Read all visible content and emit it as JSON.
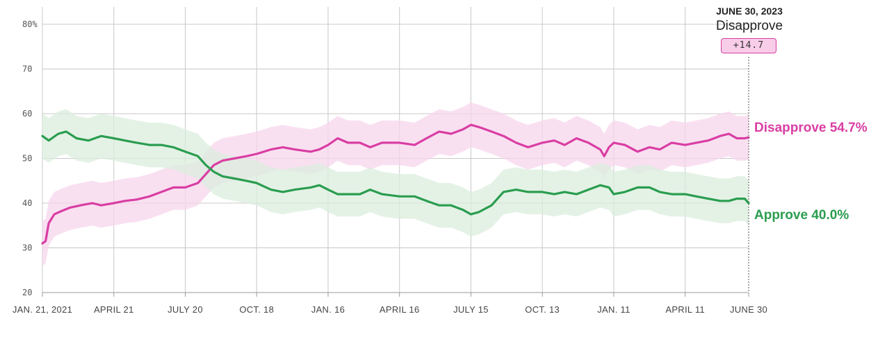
{
  "hover": {
    "date": "JUNE 30, 2023",
    "leader": "Disapprove",
    "margin": "+14.7"
  },
  "end_labels": {
    "disapprove": "Disapprove 54.7%",
    "approve": "Approve 40.0%"
  },
  "colors": {
    "disapprove": "#d93ea3",
    "disapprove_band": "#f7d5ec",
    "approve": "#2a9d4f",
    "approve_band": "#dbeedd"
  },
  "chart_data": {
    "type": "line",
    "title": "",
    "xlabel": "",
    "ylabel": "",
    "ylim": [
      20,
      80
    ],
    "yticks": [
      20,
      30,
      40,
      50,
      60,
      70,
      80
    ],
    "ytick_labels": [
      "20",
      "30",
      "40",
      "50",
      "60",
      "70",
      "80%"
    ],
    "xlim": [
      "2021-01-21",
      "2023-06-30"
    ],
    "xticks": [
      "2021-01-21",
      "2021-04-21",
      "2021-07-20",
      "2021-10-18",
      "2022-01-16",
      "2022-04-16",
      "2022-07-15",
      "2022-10-13",
      "2023-01-11",
      "2023-04-11",
      "2023-06-30"
    ],
    "xtick_labels": [
      "JAN. 21, 2021",
      "APRIL 21",
      "JULY 20",
      "OCT. 18",
      "JAN. 16",
      "APRIL 16",
      "JULY 15",
      "OCT. 13",
      "JAN. 11",
      "APRIL 11",
      "JUNE 30"
    ],
    "grid": true,
    "series": [
      {
        "name": "Disapprove",
        "band_width": 5,
        "points": [
          [
            "2021-01-21",
            31.0
          ],
          [
            "2021-01-25",
            31.5
          ],
          [
            "2021-01-29",
            35.5
          ],
          [
            "2021-02-05",
            37.5
          ],
          [
            "2021-02-15",
            38.3
          ],
          [
            "2021-02-25",
            39.0
          ],
          [
            "2021-03-10",
            39.5
          ],
          [
            "2021-03-25",
            40.0
          ],
          [
            "2021-04-05",
            39.5
          ],
          [
            "2021-04-21",
            40.0
          ],
          [
            "2021-05-05",
            40.5
          ],
          [
            "2021-05-20",
            40.8
          ],
          [
            "2021-06-05",
            41.5
          ],
          [
            "2021-06-20",
            42.5
          ],
          [
            "2021-07-05",
            43.5
          ],
          [
            "2021-07-20",
            43.5
          ],
          [
            "2021-08-05",
            44.5
          ],
          [
            "2021-08-15",
            46.5
          ],
          [
            "2021-08-25",
            48.5
          ],
          [
            "2021-09-05",
            49.5
          ],
          [
            "2021-09-20",
            50.0
          ],
          [
            "2021-10-05",
            50.5
          ],
          [
            "2021-10-18",
            51.0
          ],
          [
            "2021-11-05",
            52.0
          ],
          [
            "2021-11-20",
            52.5
          ],
          [
            "2021-12-05",
            52.0
          ],
          [
            "2021-12-25",
            51.5
          ],
          [
            "2022-01-05",
            52.0
          ],
          [
            "2022-01-16",
            53.0
          ],
          [
            "2022-01-28",
            54.5
          ],
          [
            "2022-02-10",
            53.5
          ],
          [
            "2022-02-25",
            53.5
          ],
          [
            "2022-03-10",
            52.5
          ],
          [
            "2022-03-25",
            53.5
          ],
          [
            "2022-04-16",
            53.5
          ],
          [
            "2022-05-05",
            53.0
          ],
          [
            "2022-05-20",
            54.5
          ],
          [
            "2022-06-05",
            56.0
          ],
          [
            "2022-06-20",
            55.5
          ],
          [
            "2022-07-05",
            56.5
          ],
          [
            "2022-07-15",
            57.5
          ],
          [
            "2022-07-25",
            57.0
          ],
          [
            "2022-08-10",
            56.0
          ],
          [
            "2022-08-25",
            55.0
          ],
          [
            "2022-09-10",
            53.5
          ],
          [
            "2022-09-25",
            52.5
          ],
          [
            "2022-10-13",
            53.5
          ],
          [
            "2022-10-28",
            54.0
          ],
          [
            "2022-11-10",
            53.0
          ],
          [
            "2022-11-25",
            54.5
          ],
          [
            "2022-12-10",
            53.5
          ],
          [
            "2022-12-25",
            52.0
          ],
          [
            "2022-12-30",
            50.5
          ],
          [
            "2023-01-05",
            52.5
          ],
          [
            "2023-01-11",
            53.5
          ],
          [
            "2023-01-25",
            53.0
          ],
          [
            "2023-02-10",
            51.5
          ],
          [
            "2023-02-25",
            52.5
          ],
          [
            "2023-03-10",
            52.0
          ],
          [
            "2023-03-25",
            53.5
          ],
          [
            "2023-04-11",
            53.0
          ],
          [
            "2023-04-25",
            53.5
          ],
          [
            "2023-05-10",
            54.0
          ],
          [
            "2023-05-25",
            55.0
          ],
          [
            "2023-06-05",
            55.5
          ],
          [
            "2023-06-15",
            54.5
          ],
          [
            "2023-06-25",
            54.5
          ],
          [
            "2023-06-30",
            54.7
          ]
        ]
      },
      {
        "name": "Approve",
        "band_width": 5,
        "points": [
          [
            "2021-01-21",
            55.0
          ],
          [
            "2021-01-29",
            54.0
          ],
          [
            "2021-02-10",
            55.5
          ],
          [
            "2021-02-20",
            56.0
          ],
          [
            "2021-03-05",
            54.5
          ],
          [
            "2021-03-20",
            54.0
          ],
          [
            "2021-04-05",
            55.0
          ],
          [
            "2021-04-21",
            54.5
          ],
          [
            "2021-05-05",
            54.0
          ],
          [
            "2021-05-20",
            53.5
          ],
          [
            "2021-06-05",
            53.0
          ],
          [
            "2021-06-20",
            53.0
          ],
          [
            "2021-07-05",
            52.5
          ],
          [
            "2021-07-20",
            51.5
          ],
          [
            "2021-08-05",
            50.5
          ],
          [
            "2021-08-15",
            48.5
          ],
          [
            "2021-08-25",
            47.0
          ],
          [
            "2021-09-05",
            46.0
          ],
          [
            "2021-09-20",
            45.5
          ],
          [
            "2021-10-05",
            45.0
          ],
          [
            "2021-10-18",
            44.5
          ],
          [
            "2021-11-05",
            43.0
          ],
          [
            "2021-11-20",
            42.5
          ],
          [
            "2021-12-05",
            43.0
          ],
          [
            "2021-12-25",
            43.5
          ],
          [
            "2022-01-05",
            44.0
          ],
          [
            "2022-01-16",
            43.0
          ],
          [
            "2022-01-28",
            42.0
          ],
          [
            "2022-02-10",
            42.0
          ],
          [
            "2022-02-25",
            42.0
          ],
          [
            "2022-03-10",
            43.0
          ],
          [
            "2022-03-25",
            42.0
          ],
          [
            "2022-04-16",
            41.5
          ],
          [
            "2022-05-05",
            41.5
          ],
          [
            "2022-05-20",
            40.5
          ],
          [
            "2022-06-05",
            39.5
          ],
          [
            "2022-06-20",
            39.5
          ],
          [
            "2022-07-05",
            38.5
          ],
          [
            "2022-07-15",
            37.5
          ],
          [
            "2022-07-25",
            38.0
          ],
          [
            "2022-08-10",
            39.5
          ],
          [
            "2022-08-25",
            42.5
          ],
          [
            "2022-09-10",
            43.0
          ],
          [
            "2022-09-25",
            42.5
          ],
          [
            "2022-10-13",
            42.5
          ],
          [
            "2022-10-28",
            42.0
          ],
          [
            "2022-11-10",
            42.5
          ],
          [
            "2022-11-25",
            42.0
          ],
          [
            "2022-12-10",
            43.0
          ],
          [
            "2022-12-25",
            44.0
          ],
          [
            "2023-01-05",
            43.5
          ],
          [
            "2023-01-11",
            42.0
          ],
          [
            "2023-01-25",
            42.5
          ],
          [
            "2023-02-10",
            43.5
          ],
          [
            "2023-02-25",
            43.5
          ],
          [
            "2023-03-10",
            42.5
          ],
          [
            "2023-03-25",
            42.0
          ],
          [
            "2023-04-11",
            42.0
          ],
          [
            "2023-04-25",
            41.5
          ],
          [
            "2023-05-10",
            41.0
          ],
          [
            "2023-05-25",
            40.5
          ],
          [
            "2023-06-05",
            40.5
          ],
          [
            "2023-06-15",
            41.0
          ],
          [
            "2023-06-25",
            41.0
          ],
          [
            "2023-06-30",
            40.0
          ]
        ]
      }
    ]
  }
}
